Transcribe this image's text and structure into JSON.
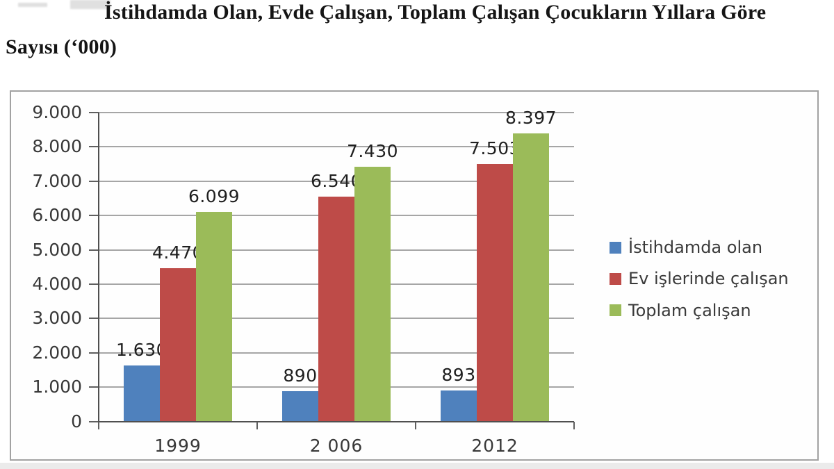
{
  "caption": {
    "line1": "İstihdamda Olan, Evde Çalışan, Toplam Çalışan Çocukların Yıllara Göre",
    "line2": "Sayısı (‘000)"
  },
  "chart_data": {
    "type": "bar",
    "title": "İstihdamda Olan, Evde Çalışan, Toplam Çalışan Çocukların Yıllara Göre Sayısı (‘000)",
    "categories": [
      "1999",
      "2 006",
      "2012"
    ],
    "series": [
      {
        "name": "İstihdamda olan",
        "color": "#4F81BD",
        "values": [
          1630,
          890,
          893
        ],
        "value_labels": [
          "1.630",
          "890",
          "893"
        ]
      },
      {
        "name": "Ev işlerinde çalışan",
        "color": "#BE4B48",
        "values": [
          4470,
          6540,
          7503
        ],
        "value_labels": [
          "4.470",
          "6.540",
          "7.503"
        ]
      },
      {
        "name": "Toplam çalışan",
        "color": "#9BBB59",
        "values": [
          6099,
          7430,
          8397
        ],
        "value_labels": [
          "6.099",
          "7.430",
          "8.397"
        ]
      }
    ],
    "xlabel": "",
    "ylabel": "",
    "ylim": [
      0,
      9000
    ],
    "ytick_labels": [
      "0",
      "1.000",
      "2.000",
      "3.000",
      "4.000",
      "5.000",
      "6.000",
      "7.000",
      "8.000",
      "9.000"
    ],
    "grid": true,
    "legend_position": "right"
  }
}
